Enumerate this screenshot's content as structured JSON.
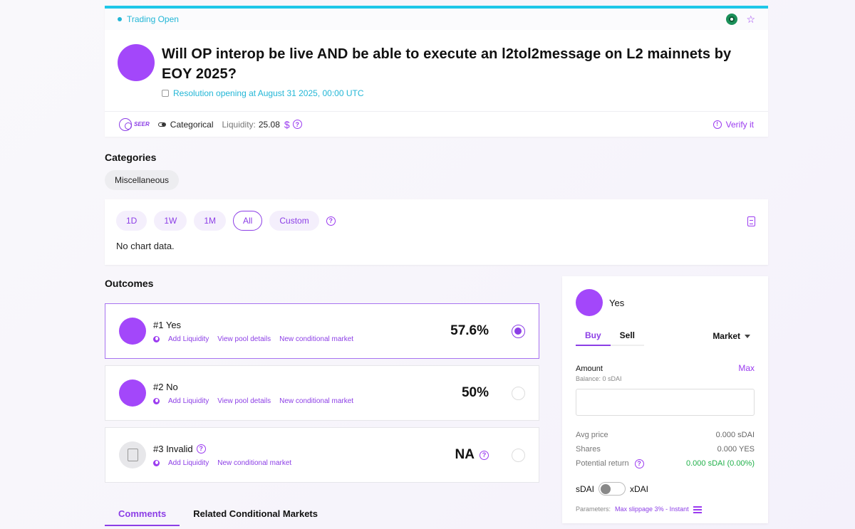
{
  "header": {
    "status": "Trading Open",
    "title": "Will OP interop be live AND be able to execute an l2tol2message on L2 mainnets by EOY 2025?",
    "resolution": "Resolution opening at August 31 2025, 00:00 UTC",
    "brand": "SEER",
    "market_type": "Categorical",
    "liquidity_label": "Liquidity:",
    "liquidity_value": "25.08",
    "currency_symbol": "$",
    "verify_label": "Verify it"
  },
  "categories": {
    "label": "Categories",
    "items": [
      "Miscellaneous"
    ]
  },
  "chart": {
    "ranges": [
      "1D",
      "1W",
      "1M",
      "All",
      "Custom"
    ],
    "active_range": "All",
    "empty_text": "No chart data."
  },
  "outcomes": {
    "label": "Outcomes",
    "items": [
      {
        "name": "#1 Yes",
        "value": "57.6%",
        "selected": true,
        "links": [
          "Add Liquidity",
          "View pool details",
          "New conditional market"
        ]
      },
      {
        "name": "#2 No",
        "value": "50%",
        "selected": false,
        "links": [
          "Add Liquidity",
          "View pool details",
          "New conditional market"
        ]
      },
      {
        "name": "#3 Invalid",
        "value": "NA",
        "selected": false,
        "links": [
          "Add Liquidity",
          "New conditional market"
        ]
      }
    ]
  },
  "bottom_tabs": [
    "Comments",
    "Related Conditional Markets"
  ],
  "trade": {
    "outcome": "Yes",
    "tabs": [
      "Buy",
      "Sell"
    ],
    "order_type": "Market",
    "amount_label": "Amount",
    "max_label": "Max",
    "balance": "Balance: 0 sDAI",
    "amount_value": "",
    "avg_price_label": "Avg price",
    "avg_price_value": "0.000 sDAI",
    "shares_label": "Shares",
    "shares_value": "0.000 YES",
    "return_label": "Potential return",
    "return_value": "0.000 sDAI (0.00%)",
    "token_left": "sDAI",
    "token_right": "xDAI",
    "params_label": "Parameters:",
    "params_value": "Max slippage 3% - Instant"
  },
  "colors": {
    "accent": "#8c3ee6",
    "status": "#22b6d6",
    "positive": "#21b04a"
  }
}
